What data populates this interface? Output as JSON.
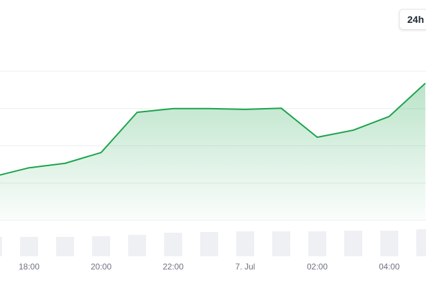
{
  "range_button": "24h",
  "chart_data": {
    "type": "area",
    "categories": [
      null,
      "18:00",
      null,
      "20:00",
      null,
      "22:00",
      null,
      "7. Jul",
      null,
      "02:00",
      null,
      "04:00",
      null
    ],
    "series": [
      {
        "color": "#1aa34a",
        "values": [
          1.17,
          1.41,
          1.53,
          1.82,
          2.9,
          3.0,
          3.0,
          2.98,
          3.01,
          2.23,
          2.42,
          2.79,
          3.68
        ]
      }
    ],
    "volume": {
      "color": "#eef0f4",
      "values": [
        28,
        28,
        28,
        29,
        31,
        34,
        35,
        36,
        36,
        36,
        37,
        37,
        39
      ]
    },
    "ylim": [
      0,
      4
    ],
    "grid": true
  }
}
